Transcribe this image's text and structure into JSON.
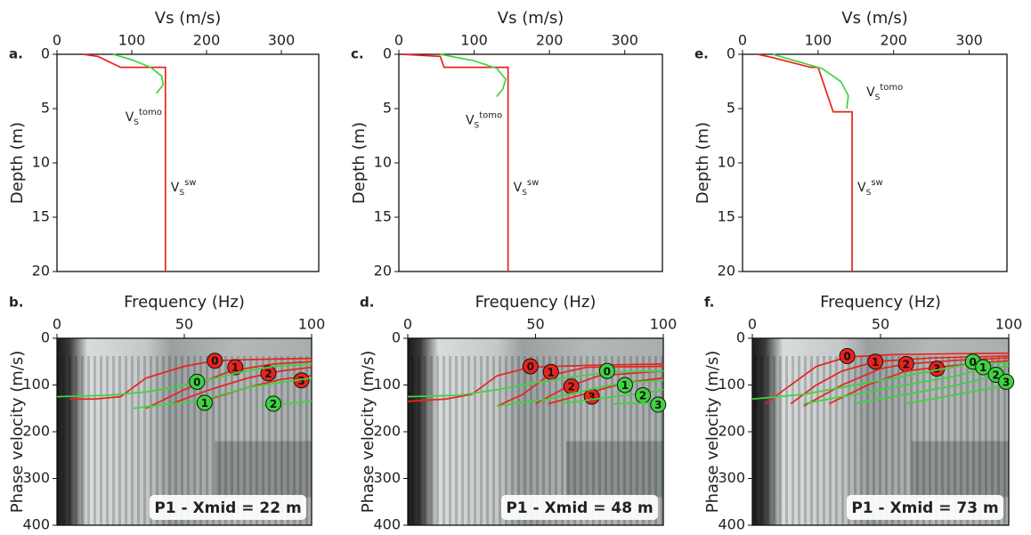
{
  "chart_data": [
    {
      "type": "line",
      "panel_label": "a.",
      "xlabel": "Vs (m/s)",
      "ylabel": "Depth (m)",
      "xaxis_position": "top",
      "y_inverted": true,
      "xlim": [
        0,
        350
      ],
      "xticks": [
        0,
        100,
        200,
        300
      ],
      "ylim": [
        0,
        20
      ],
      "yticks": [
        0,
        5,
        10,
        15,
        20
      ],
      "series": [
        {
          "name": "V",
          "subscript": "S",
          "superscript": "sw",
          "color": "#e8231c",
          "x": [
            35,
            55,
            85,
            145,
            145
          ],
          "y": [
            0,
            0.2,
            1.2,
            1.2,
            20
          ]
        },
        {
          "name": "V",
          "subscript": "S",
          "superscript": "tomo",
          "color": "#3ed43e",
          "x": [
            75,
            100,
            125,
            140,
            142,
            133
          ],
          "y": [
            0,
            0.5,
            1.2,
            2,
            2.8,
            3.6
          ]
        }
      ]
    },
    {
      "type": "line",
      "panel_label": "b.",
      "xlabel": "Frequency (Hz)",
      "ylabel": "Phase velocity (m/s)",
      "xaxis_position": "top",
      "y_inverted": true,
      "xlim": [
        0,
        100
      ],
      "xticks": [
        0,
        50,
        100
      ],
      "ylim": [
        0,
        400
      ],
      "yticks": [
        0,
        100,
        200,
        300,
        400
      ],
      "annotation": "P1 - Xmid = 22 m",
      "series": [
        {
          "name": "0",
          "color": "#e8231c",
          "x": [
            5,
            15,
            25,
            35,
            50,
            62,
            80,
            100
          ],
          "y": [
            130,
            130,
            125,
            85,
            60,
            48,
            45,
            43
          ],
          "label_point": [
            62,
            48
          ]
        },
        {
          "name": "1",
          "color": "#e8231c",
          "x": [
            35,
            50,
            68,
            85,
            100
          ],
          "y": [
            150,
            110,
            70,
            55,
            50
          ],
          "label_point": [
            70,
            62
          ]
        },
        {
          "name": "2",
          "color": "#e8231c",
          "x": [
            45,
            60,
            75,
            88,
            100
          ],
          "y": [
            140,
            110,
            85,
            70,
            62
          ],
          "label_point": [
            83,
            75
          ]
        },
        {
          "name": "3",
          "color": "#e8231c",
          "x": [
            60,
            75,
            88,
            100
          ],
          "y": [
            130,
            105,
            88,
            80
          ],
          "label_point": [
            96,
            90
          ]
        },
        {
          "name": "0",
          "color": "#3ed43e",
          "x": [
            0,
            20,
            35,
            45,
            55,
            70,
            85,
            100
          ],
          "y": [
            125,
            122,
            115,
            105,
            95,
            75,
            60,
            55
          ],
          "label_point": [
            55,
            93
          ]
        },
        {
          "name": "1",
          "color": "#3ed43e",
          "x": [
            30,
            45,
            55,
            60,
            75,
            100
          ],
          "y": [
            150,
            140,
            135,
            128,
            105,
            85
          ],
          "label_point": [
            58,
            138
          ]
        },
        {
          "name": "2",
          "color": "#3ed43e",
          "x": [
            80,
            90,
            100
          ],
          "y": [
            145,
            140,
            135
          ],
          "label_point": [
            85,
            140
          ]
        }
      ]
    },
    {
      "type": "line",
      "panel_label": "c.",
      "xlabel": "Vs (m/s)",
      "ylabel": "Depth (m)",
      "xaxis_position": "top",
      "y_inverted": true,
      "xlim": [
        0,
        350
      ],
      "xticks": [
        0,
        100,
        200,
        300
      ],
      "ylim": [
        0,
        20
      ],
      "yticks": [
        0,
        5,
        10,
        15,
        20
      ],
      "series": [
        {
          "name": "V",
          "subscript": "S",
          "superscript": "sw",
          "color": "#e8231c",
          "x": [
            5,
            55,
            60,
            145,
            145
          ],
          "y": [
            0,
            0.2,
            1.2,
            1.2,
            20
          ]
        },
        {
          "name": "V",
          "subscript": "S",
          "superscript": "tomo",
          "color": "#3ed43e",
          "x": [
            55,
            100,
            130,
            142,
            138,
            130
          ],
          "y": [
            0,
            0.6,
            1.3,
            2.3,
            3.2,
            3.9
          ]
        }
      ]
    },
    {
      "type": "line",
      "panel_label": "d.",
      "xlabel": "Frequency (Hz)",
      "ylabel": "Phase velocity (m/s)",
      "xaxis_position": "top",
      "y_inverted": true,
      "xlim": [
        0,
        100
      ],
      "xticks": [
        0,
        50,
        100
      ],
      "ylim": [
        0,
        400
      ],
      "yticks": [
        0,
        100,
        200,
        300,
        400
      ],
      "annotation": "P1 - Xmid = 48 m",
      "series": [
        {
          "name": "0",
          "color": "#e8231c",
          "x": [
            0,
            15,
            25,
            35,
            48,
            70,
            100
          ],
          "y": [
            135,
            130,
            120,
            80,
            62,
            58,
            55
          ],
          "label_point": [
            48,
            60
          ]
        },
        {
          "name": "1",
          "color": "#e8231c",
          "x": [
            35,
            45,
            55,
            70,
            100
          ],
          "y": [
            145,
            120,
            80,
            62,
            60
          ],
          "label_point": [
            56,
            72
          ]
        },
        {
          "name": "2",
          "color": "#e8231c",
          "x": [
            50,
            62,
            75,
            100
          ],
          "y": [
            140,
            105,
            80,
            70
          ],
          "label_point": [
            64,
            103
          ]
        },
        {
          "name": "3",
          "color": "#e8231c",
          "x": [
            55,
            70,
            85,
            100
          ],
          "y": [
            140,
            118,
            95,
            85
          ],
          "label_point": [
            72,
            125
          ]
        },
        {
          "name": "0",
          "color": "#3ed43e",
          "x": [
            0,
            20,
            35,
            50,
            65,
            80,
            100
          ],
          "y": [
            125,
            122,
            110,
            95,
            82,
            72,
            70
          ],
          "label_point": [
            78,
            70
          ]
        },
        {
          "name": "1",
          "color": "#3ed43e",
          "x": [
            35,
            55,
            75,
            85,
            100
          ],
          "y": [
            145,
            130,
            105,
            95,
            90
          ],
          "label_point": [
            85,
            100
          ]
        },
        {
          "name": "2",
          "color": "#3ed43e",
          "x": [
            60,
            80,
            92,
            100
          ],
          "y": [
            140,
            125,
            118,
            110
          ],
          "label_point": [
            92,
            122
          ]
        },
        {
          "name": "3",
          "color": "#3ed43e",
          "x": [
            80,
            100
          ],
          "y": [
            140,
            138
          ],
          "label_point": [
            98,
            142
          ]
        }
      ]
    },
    {
      "type": "line",
      "panel_label": "e.",
      "xlabel": "Vs (m/s)",
      "ylabel": "Depth (m)",
      "xaxis_position": "top",
      "y_inverted": true,
      "xlim": [
        0,
        350
      ],
      "xticks": [
        0,
        100,
        200,
        300
      ],
      "ylim": [
        0,
        20
      ],
      "yticks": [
        0,
        5,
        10,
        15,
        20
      ],
      "series": [
        {
          "name": "V",
          "subscript": "S",
          "superscript": "sw",
          "color": "#e8231c",
          "x": [
            20,
            40,
            90,
            100,
            120,
            145,
            145
          ],
          "y": [
            0,
            0.3,
            1.2,
            1.2,
            5.3,
            5.3,
            20
          ]
        },
        {
          "name": "V",
          "subscript": "S",
          "superscript": "tomo",
          "color": "#3ed43e",
          "x": [
            40,
            80,
            105,
            130,
            140,
            138
          ],
          "y": [
            0,
            0.8,
            1.3,
            2.5,
            3.8,
            5
          ]
        }
      ]
    },
    {
      "type": "line",
      "panel_label": "f.",
      "xlabel": "Frequency (Hz)",
      "ylabel": "Phase velocity (m/s)",
      "xaxis_position": "top",
      "y_inverted": true,
      "xlim": [
        0,
        100
      ],
      "xticks": [
        0,
        50,
        100
      ],
      "ylim": [
        0,
        400
      ],
      "yticks": [
        0,
        100,
        200,
        300,
        400
      ],
      "annotation": "P1 - Xmid = 73 m",
      "series": [
        {
          "name": "0",
          "color": "#e8231c",
          "x": [
            5,
            15,
            25,
            37,
            55,
            80,
            100
          ],
          "y": [
            140,
            100,
            60,
            40,
            35,
            33,
            32
          ],
          "label_point": [
            37,
            38
          ]
        },
        {
          "name": "1",
          "color": "#e8231c",
          "x": [
            15,
            25,
            35,
            48,
            70,
            100
          ],
          "y": [
            140,
            100,
            70,
            50,
            42,
            38
          ],
          "label_point": [
            48,
            50
          ]
        },
        {
          "name": "2",
          "color": "#e8231c",
          "x": [
            20,
            35,
            50,
            60,
            80,
            100
          ],
          "y": [
            145,
            100,
            65,
            55,
            47,
            42
          ],
          "label_point": [
            60,
            55
          ]
        },
        {
          "name": "3",
          "color": "#e8231c",
          "x": [
            30,
            45,
            60,
            72,
            90,
            100
          ],
          "y": [
            140,
            100,
            70,
            62,
            52,
            48
          ],
          "label_point": [
            72,
            65
          ]
        },
        {
          "name": "0",
          "color": "#3ed43e",
          "x": [
            0,
            20,
            40,
            60,
            85,
            100
          ],
          "y": [
            130,
            120,
            100,
            80,
            55,
            52
          ],
          "label_point": [
            86,
            50
          ]
        },
        {
          "name": "1",
          "color": "#3ed43e",
          "x": [
            20,
            40,
            60,
            80,
            90,
            100
          ],
          "y": [
            140,
            120,
            100,
            80,
            65,
            60
          ],
          "label_point": [
            90,
            62
          ]
        },
        {
          "name": "2",
          "color": "#3ed43e",
          "x": [
            40,
            60,
            80,
            95,
            100
          ],
          "y": [
            140,
            120,
            100,
            80,
            75
          ],
          "label_point": [
            95,
            78
          ]
        },
        {
          "name": "3",
          "color": "#3ed43e",
          "x": [
            60,
            80,
            100
          ],
          "y": [
            140,
            120,
            100
          ],
          "label_point": [
            99,
            93
          ]
        }
      ]
    }
  ]
}
